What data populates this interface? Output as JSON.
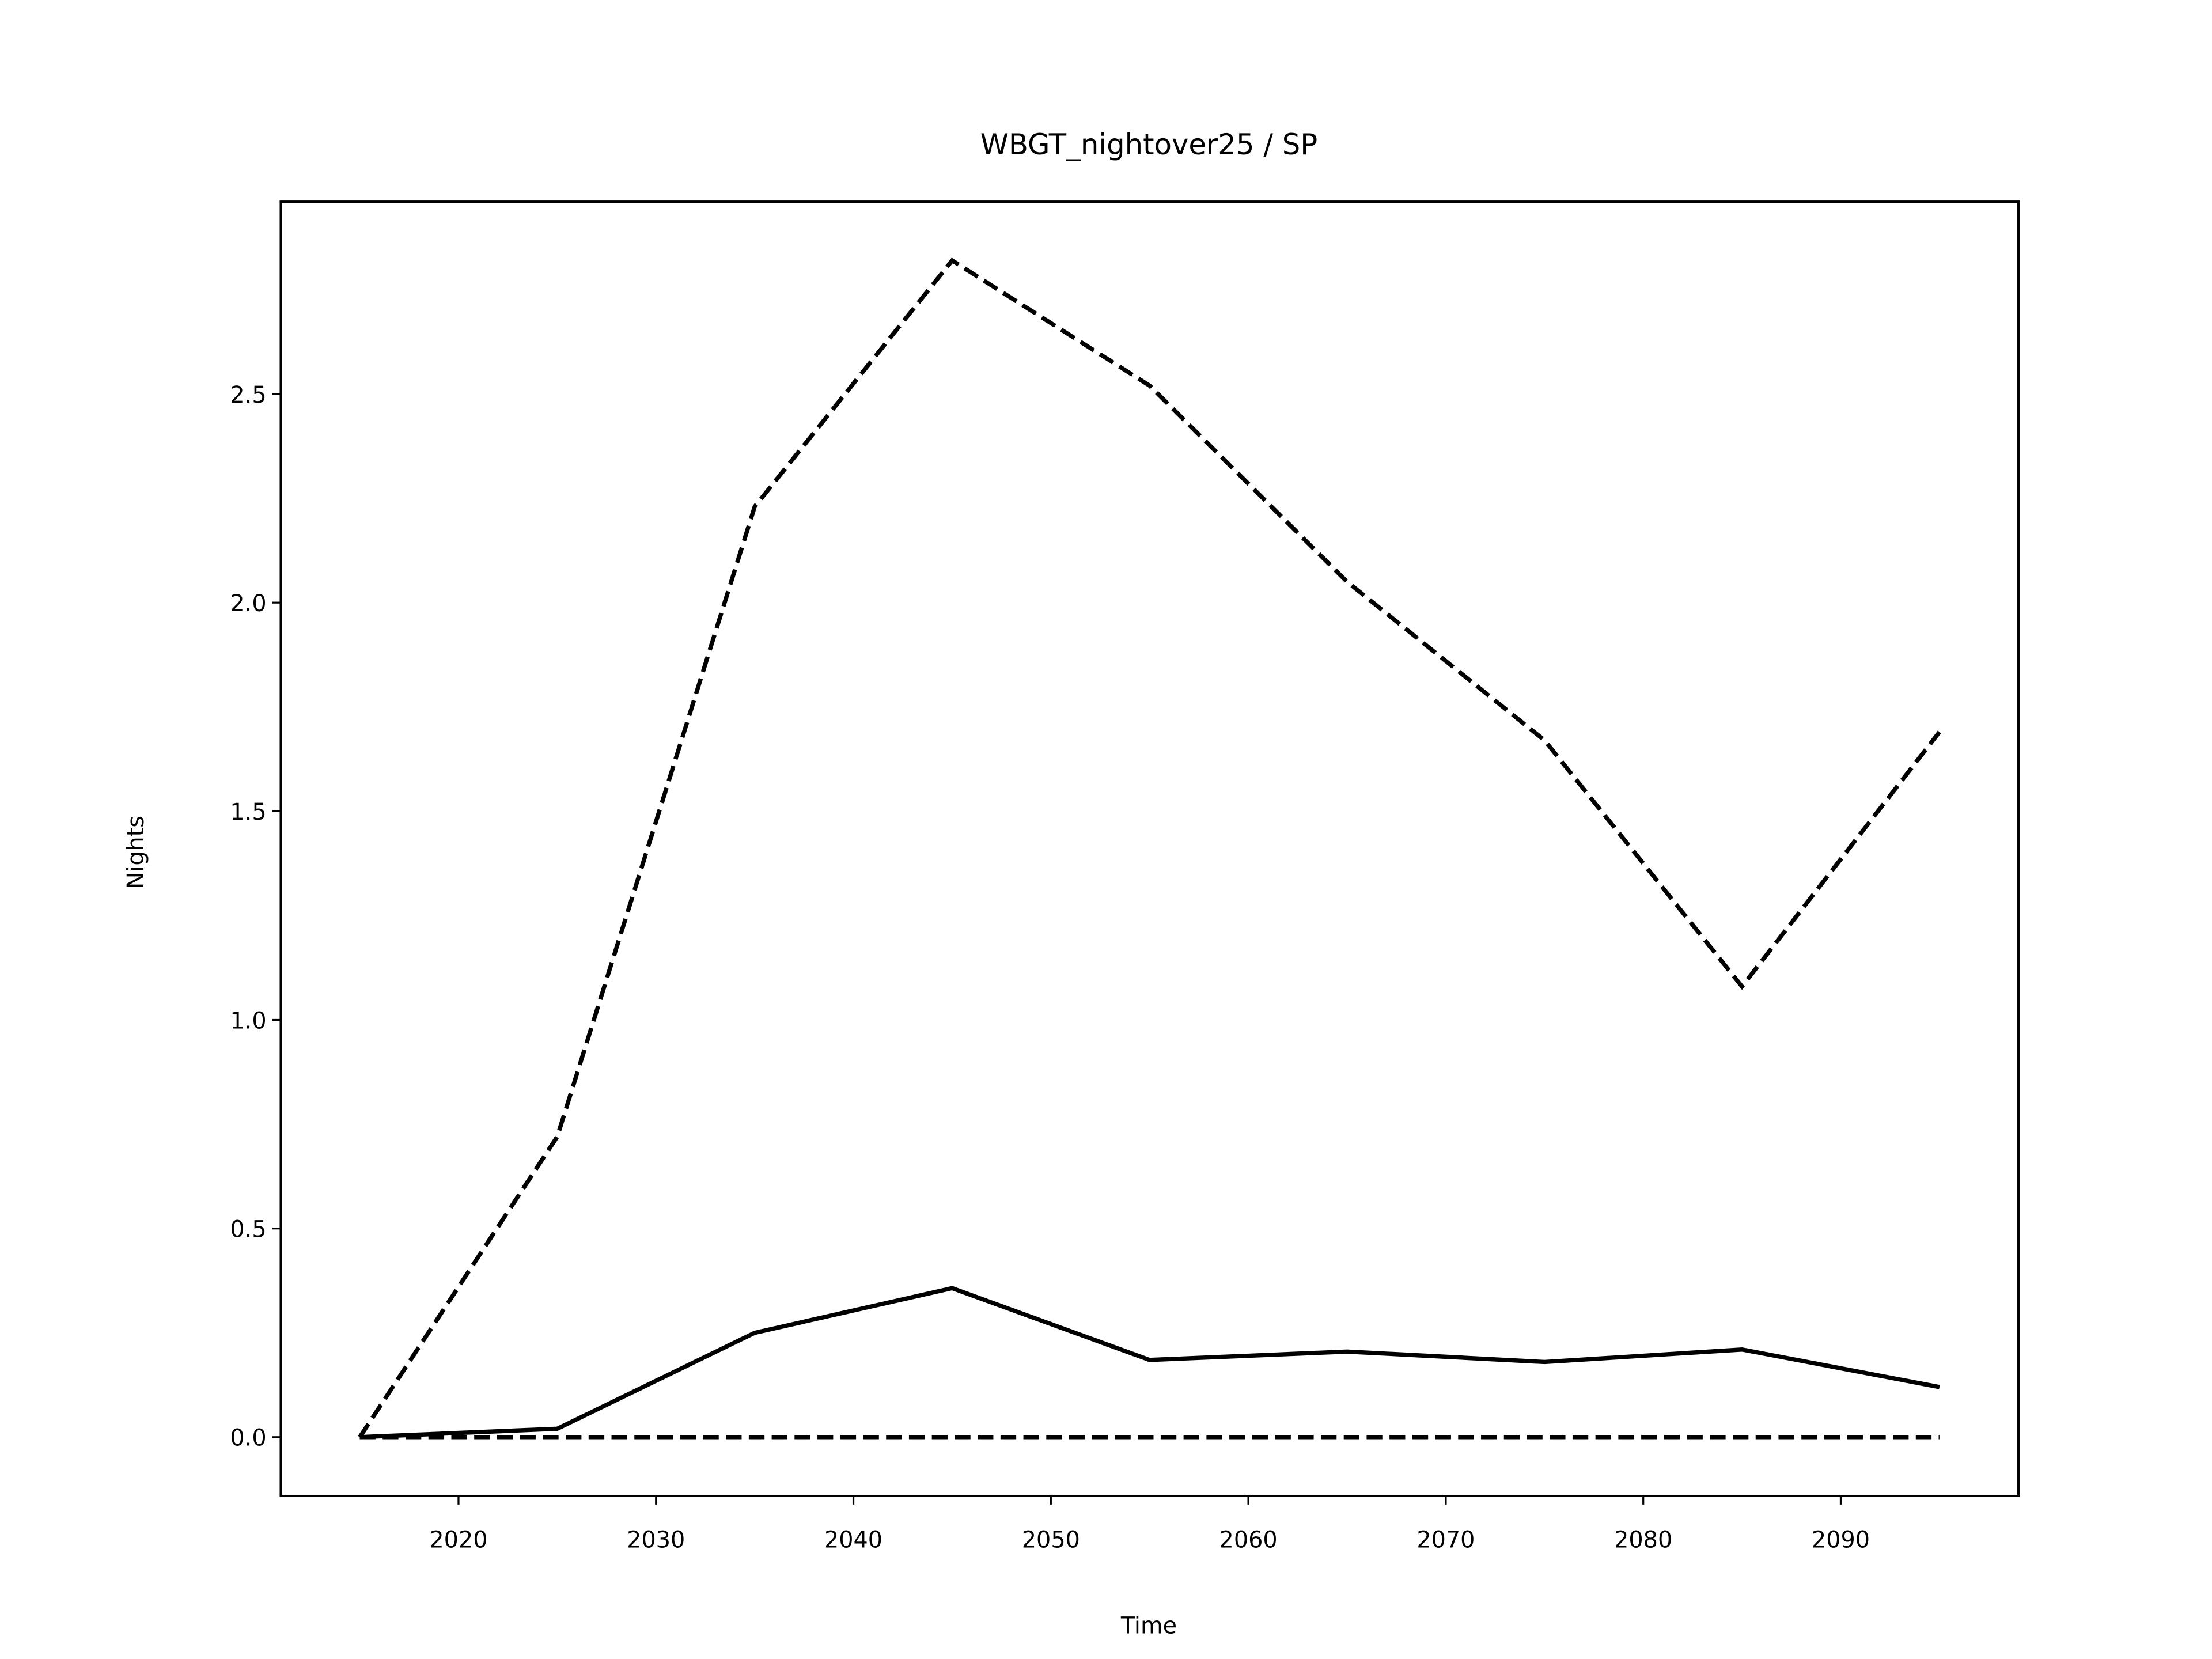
{
  "chart_data": {
    "type": "line",
    "title": "WBGT_nightover25 / SP",
    "x_label": "Time",
    "y_label": "Nights",
    "x": [
      2015,
      2025,
      2035,
      2045,
      2055,
      2065,
      2075,
      2085,
      2095
    ],
    "series": [
      {
        "color": "#000000",
        "dashed": true,
        "values": [
          0,
          0.72,
          2.23,
          2.82,
          2.52,
          2.05,
          1.67,
          1.08,
          1.69
        ]
      },
      {
        "color": "#000000",
        "dashed": false,
        "values": [
          0,
          0.02,
          0.25,
          0.357,
          0.185,
          0.205,
          0.18,
          0.21,
          0.12
        ]
      },
      {
        "color": "#000000",
        "dashed": true,
        "values": [
          0,
          0,
          0,
          0,
          0,
          0,
          0,
          0,
          0
        ]
      }
    ],
    "xlim": [
      2011,
      2099
    ],
    "xticks": [
      2020,
      2030,
      2040,
      2050,
      2060,
      2070,
      2080,
      2090
    ],
    "ylim": [
      -0.141,
      2.961
    ],
    "yticks": [
      {
        "value": 0,
        "label": "0.0"
      },
      0.5,
      {
        "value": 1,
        "label": "1.0"
      },
      1.5,
      {
        "value": 2,
        "label": "2.0"
      },
      2.5
    ],
    "grid": false
  }
}
